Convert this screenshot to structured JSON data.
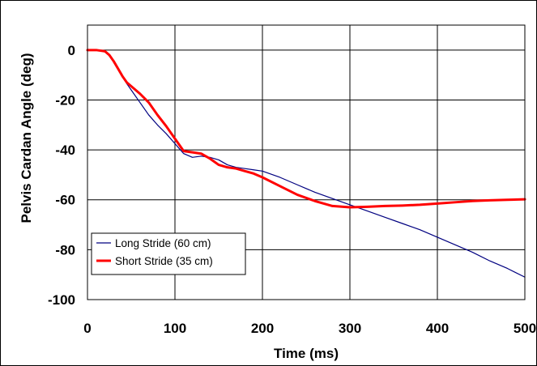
{
  "chart_data": {
    "type": "line",
    "xlabel": "Time (ms)",
    "ylabel": "Pelvis Cardan Angle (deg)",
    "xlim": [
      0,
      500
    ],
    "ylim": [
      -100,
      10
    ],
    "xticks": [
      0,
      100,
      200,
      300,
      400,
      500
    ],
    "yticks": [
      0,
      -20,
      -40,
      -60,
      -80,
      -100
    ],
    "x_tick_labels": [
      "0",
      "100",
      "200",
      "300",
      "400",
      "500"
    ],
    "y_tick_labels": [
      "0",
      "-20",
      "-40",
      "-60",
      "-80",
      "-100"
    ],
    "grid": true,
    "legend_position": "bottom-left",
    "series": [
      {
        "name": "Long Stride (60 cm)",
        "color": "#000080",
        "x": [
          0,
          10,
          20,
          25,
          30,
          35,
          40,
          45,
          50,
          60,
          70,
          80,
          90,
          100,
          110,
          120,
          130,
          140,
          150,
          160,
          170,
          180,
          190,
          200,
          220,
          240,
          260,
          280,
          300,
          320,
          340,
          360,
          380,
          400,
          420,
          440,
          460,
          480,
          500
        ],
        "y": [
          0,
          0,
          -0.5,
          -2,
          -4.5,
          -7.5,
          -10.5,
          -13.5,
          -16,
          -21,
          -26,
          -30,
          -33.5,
          -37.5,
          -41.5,
          -43,
          -42.5,
          -43,
          -44,
          -46,
          -47,
          -47.5,
          -48,
          -48.5,
          -51,
          -54,
          -57,
          -59.5,
          -62,
          -64.5,
          -67,
          -69.5,
          -72,
          -75,
          -78,
          -81,
          -84.5,
          -87.5,
          -91
        ]
      },
      {
        "name": "Short Stride (35 cm)",
        "color": "#ff0000",
        "x": [
          0,
          10,
          20,
          25,
          30,
          35,
          40,
          45,
          50,
          60,
          70,
          80,
          90,
          100,
          110,
          120,
          130,
          140,
          150,
          160,
          170,
          180,
          190,
          200,
          220,
          240,
          260,
          280,
          300,
          320,
          340,
          360,
          380,
          400,
          420,
          440,
          460,
          480,
          500
        ],
        "y": [
          0,
          0,
          -0.5,
          -2,
          -4.5,
          -7.5,
          -10.5,
          -13,
          -14.5,
          -17.5,
          -21,
          -26,
          -30.5,
          -35.5,
          -40.5,
          -41,
          -41.5,
          -43.5,
          -46,
          -47,
          -47.5,
          -48.5,
          -49.5,
          -51,
          -54.5,
          -58,
          -60.5,
          -62.5,
          -63,
          -62.8,
          -62.5,
          -62.3,
          -62,
          -61.5,
          -61,
          -60.5,
          -60.2,
          -60,
          -59.8
        ]
      }
    ]
  }
}
